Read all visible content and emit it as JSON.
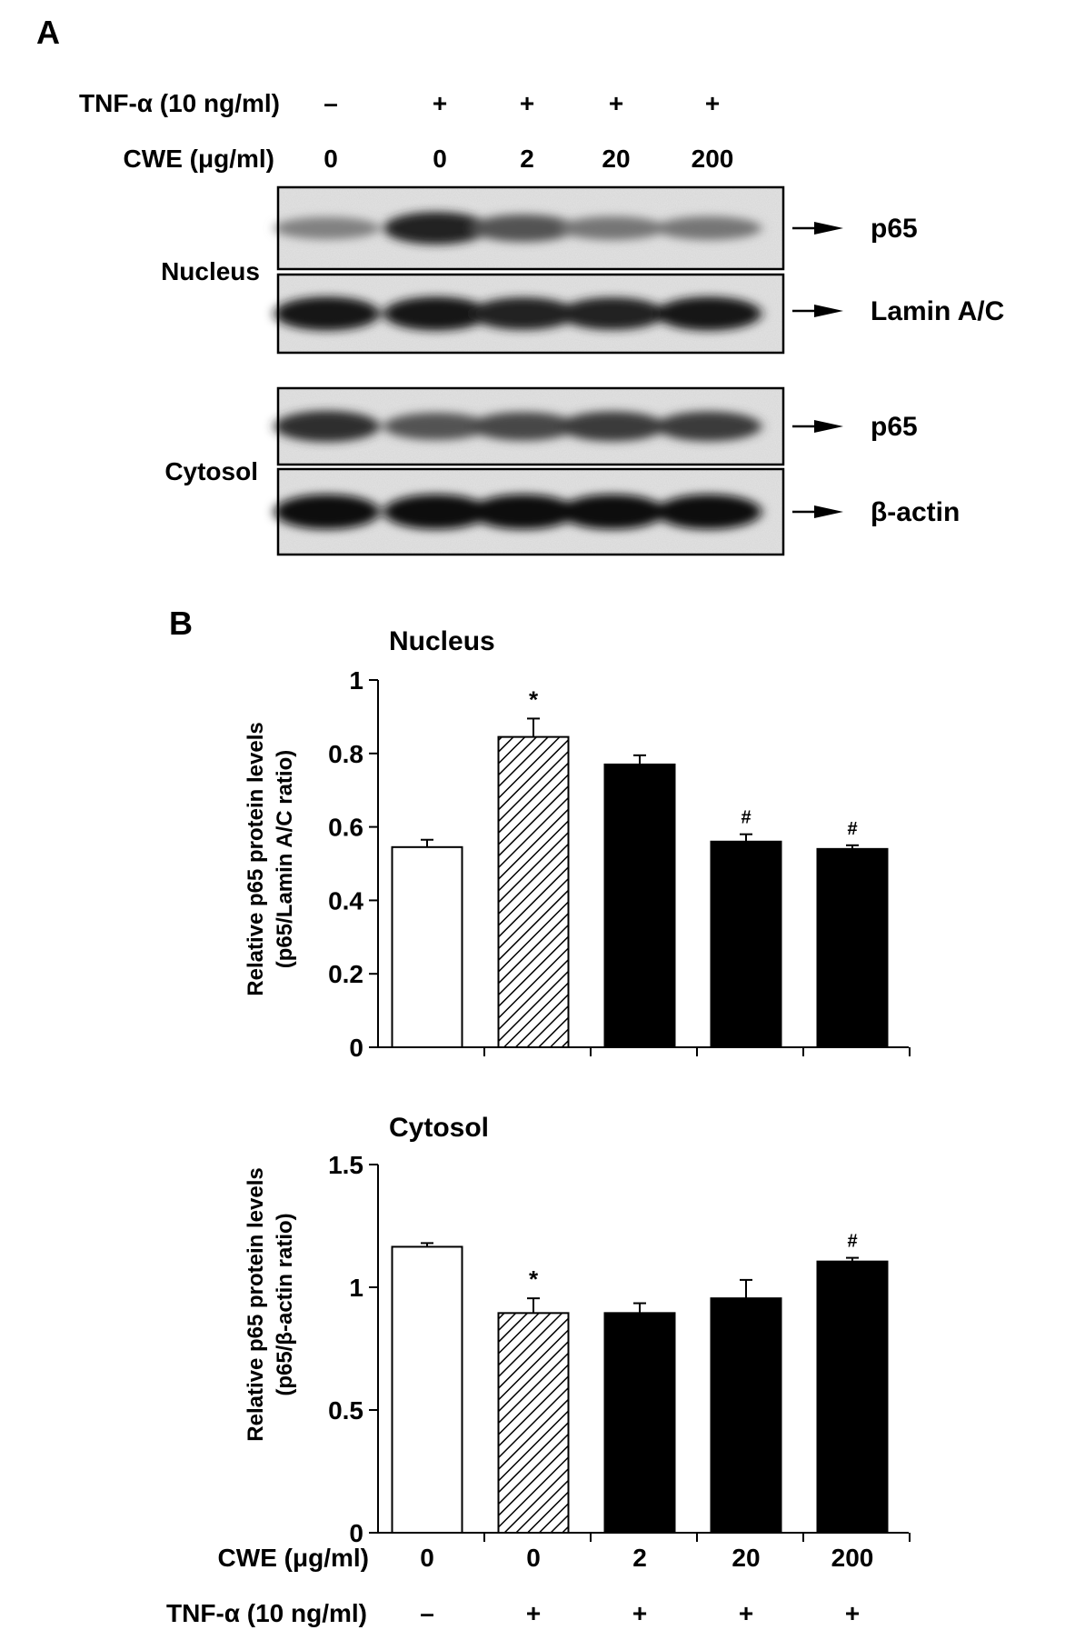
{
  "panel_a": {
    "letter": "A",
    "treatment_rows": [
      {
        "label": "TNF-α (10 ng/ml)",
        "values": [
          "–",
          "+",
          "+",
          "+",
          "+"
        ]
      },
      {
        "label": "CWE (μg/ml)",
        "values": [
          "0",
          "0",
          "2",
          "20",
          "200"
        ]
      }
    ],
    "fraction_labels": {
      "nucleus": "Nucleus",
      "cytosol": "Cytosol"
    },
    "blots": [
      {
        "protein": "p65",
        "fraction": "nucleus",
        "band_intensity": [
          0.45,
          0.85,
          0.65,
          0.5,
          0.5
        ]
      },
      {
        "protein": "Lamin A/C",
        "fraction": "nucleus",
        "band_intensity": [
          0.9,
          0.9,
          0.85,
          0.85,
          0.9
        ]
      },
      {
        "protein": "p65",
        "fraction": "cytosol",
        "band_intensity": [
          0.8,
          0.65,
          0.7,
          0.75,
          0.75
        ]
      },
      {
        "protein": "β-actin",
        "fraction": "cytosol",
        "band_intensity": [
          0.95,
          0.95,
          0.95,
          0.95,
          0.95
        ]
      }
    ]
  },
  "panel_b": {
    "letter": "B",
    "x_rows": [
      {
        "label": "CWE (μg/ml)",
        "values": [
          "0",
          "0",
          "2",
          "20",
          "200"
        ]
      },
      {
        "label": "TNF-α (10 ng/ml)",
        "values": [
          "–",
          "+",
          "+",
          "+",
          "+"
        ]
      }
    ]
  },
  "colors": {
    "control": "#ffffff",
    "tnf": "hatched",
    "cwe": "#000000"
  },
  "chart_data": [
    {
      "type": "bar",
      "title": "Nucleus",
      "ylabel": [
        "Relative p65 protein levels",
        "(p65/Lamin A/C ratio)"
      ],
      "categories": [
        "0 / –",
        "0 / +",
        "2 / +",
        "20 / +",
        "200 / +"
      ],
      "values": [
        0.545,
        0.845,
        0.77,
        0.56,
        0.54
      ],
      "errors": [
        0.02,
        0.05,
        0.025,
        0.02,
        0.01
      ],
      "annotations": [
        "",
        "*",
        "",
        "#",
        "#"
      ],
      "fills": [
        "white",
        "hatched",
        "black",
        "black",
        "black"
      ],
      "ylim": [
        0,
        1
      ],
      "yticks": [
        "0",
        "0.2",
        "0.4",
        "0.6",
        "0.8",
        "1"
      ],
      "ytick_values": [
        0,
        0.2,
        0.4,
        0.6,
        0.8,
        1
      ]
    },
    {
      "type": "bar",
      "title": "Cytosol",
      "ylabel": [
        "Relative p65 protein levels",
        "(p65/β-actin ratio)"
      ],
      "categories": [
        "0 / –",
        "0 / +",
        "2 / +",
        "20 / +",
        "200 / +"
      ],
      "values": [
        1.165,
        0.895,
        0.895,
        0.955,
        1.105
      ],
      "errors": [
        0.015,
        0.06,
        0.04,
        0.075,
        0.015
      ],
      "annotations": [
        "",
        "*",
        "",
        "",
        "#"
      ],
      "fills": [
        "white",
        "hatched",
        "black",
        "black",
        "black"
      ],
      "ylim": [
        0,
        1.5
      ],
      "yticks": [
        "0",
        "0.5",
        "1",
        "1.5"
      ],
      "ytick_values": [
        0,
        0.5,
        1,
        1.5
      ]
    }
  ]
}
